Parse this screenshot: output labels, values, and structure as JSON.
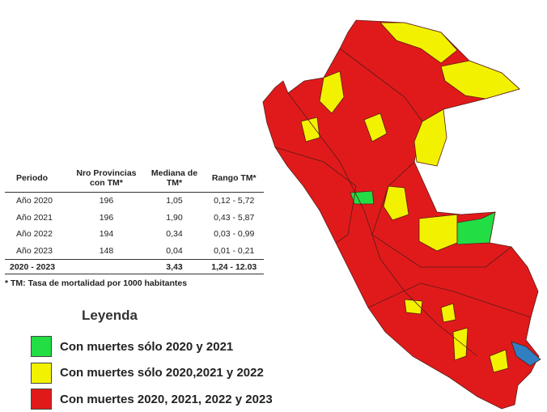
{
  "table": {
    "header": [
      "Periodo",
      "Nro Provincias con TM*",
      "Mediana de TM*",
      "Rango TM*"
    ],
    "rows": [
      [
        "Año 2020",
        "196",
        "1,05",
        "0,12 - 5,72"
      ],
      [
        "Año 2021",
        "196",
        "1,90",
        "0,43 - 5,87"
      ],
      [
        "Año 2022",
        "194",
        "0,34",
        "0,03 - 0,99"
      ],
      [
        "Año 2023",
        "148",
        "0,04",
        "0,01 - 0,21"
      ]
    ],
    "total": [
      "2020 - 2023",
      "",
      "3,43",
      "1,24 - 12.03"
    ],
    "footnote": "* TM: Tasa de mortalidad por 1000 habitantes"
  },
  "legend": {
    "title": "Leyenda",
    "items": [
      {
        "label": "Con muertes sólo 2020 y 2021",
        "color": "#22dd44"
      },
      {
        "label": "Con muertes sólo 2020,2021 y 2022",
        "color": "#f2f200"
      },
      {
        "label": "Con muertes 2020, 2021, 2022 y 2023",
        "color": "#e01a1a"
      }
    ]
  }
}
